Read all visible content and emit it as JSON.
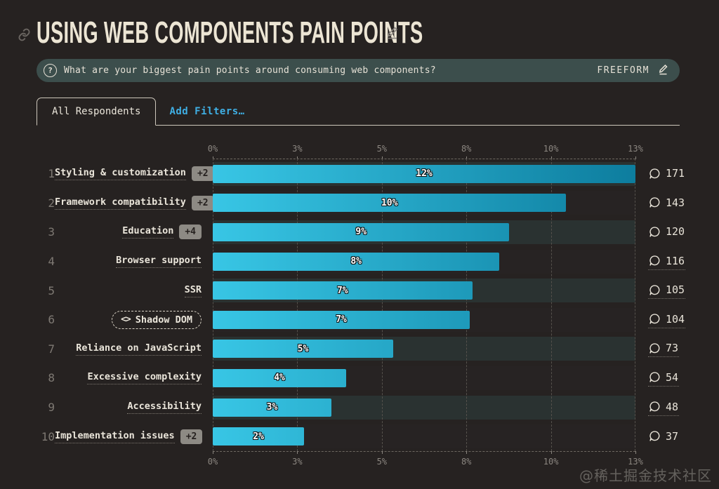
{
  "header": {
    "title": "USING WEB COMPONENTS PAIN POINTS"
  },
  "question": {
    "icon": "?",
    "text": "What are your biggest pain points around consuming web components?",
    "type_label": "FREEFORM"
  },
  "tabs": {
    "active": "All Respondents",
    "add_filters": "Add Filters…"
  },
  "chart_data": {
    "type": "bar",
    "orientation": "horizontal",
    "title": "Using web components pain points",
    "xlabel": "",
    "ylabel": "",
    "axis_ticks": [
      "0%",
      "3%",
      "5%",
      "8%",
      "10%",
      "13%"
    ],
    "axis_max_count": 171,
    "grid": true,
    "rows": [
      {
        "rank": 1,
        "label": "Styling & customization",
        "badge": "+2",
        "pct_label": "12%",
        "count": 171,
        "count_underline": false,
        "style": "default"
      },
      {
        "rank": 2,
        "label": "Framework compatibility",
        "badge": "+2",
        "pct_label": "10%",
        "count": 143,
        "count_underline": false,
        "style": "default"
      },
      {
        "rank": 3,
        "label": "Education",
        "badge": "+4",
        "pct_label": "9%",
        "count": 120,
        "count_underline": false,
        "style": "default"
      },
      {
        "rank": 4,
        "label": "Browser support",
        "badge": null,
        "pct_label": "8%",
        "count": 116,
        "count_underline": true,
        "style": "default"
      },
      {
        "rank": 5,
        "label": "SSR",
        "badge": null,
        "pct_label": "7%",
        "count": 105,
        "count_underline": true,
        "style": "default"
      },
      {
        "rank": 6,
        "label": "Shadow DOM",
        "badge": null,
        "pct_label": "7%",
        "count": 104,
        "count_underline": true,
        "style": "code-pill",
        "icon": "<>"
      },
      {
        "rank": 7,
        "label": "Reliance on JavaScript",
        "badge": null,
        "pct_label": "5%",
        "count": 73,
        "count_underline": true,
        "style": "default"
      },
      {
        "rank": 8,
        "label": "Excessive complexity",
        "badge": null,
        "pct_label": "4%",
        "count": 54,
        "count_underline": true,
        "style": "default"
      },
      {
        "rank": 9,
        "label": "Accessibility",
        "badge": null,
        "pct_label": "3%",
        "count": 48,
        "count_underline": true,
        "style": "default"
      },
      {
        "rank": 10,
        "label": "Implementation issues",
        "badge": "+2",
        "pct_label": "2%",
        "count": 37,
        "count_underline": false,
        "style": "default"
      }
    ],
    "colors": {
      "bar_gradient_start": "#38c6e5",
      "bar_gradient_end": "#0d7d9e",
      "track_light": "#2a3231",
      "track_dark": "#272323",
      "accent_cyan": "#3fafe4",
      "question_bar_bg": "#3c4e4c",
      "background": "#262221",
      "cream_text": "#ece5d4"
    }
  },
  "watermark": "@稀土掘金技术社区"
}
